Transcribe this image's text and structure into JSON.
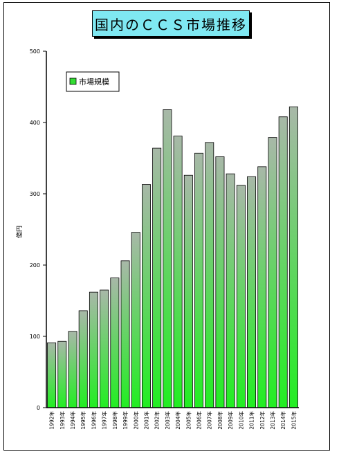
{
  "chart_data": {
    "type": "bar",
    "title": "国内のＣＣＳ市場推移",
    "ylabel": "億円",
    "xlabel": "",
    "ylim": [
      0,
      500
    ],
    "yticks": [
      0,
      100,
      200,
      300,
      400,
      500
    ],
    "legend_position": "top-left",
    "bar_color_top": "#a8b8a8",
    "bar_color_bottom": "#22ee22",
    "series": [
      {
        "name": "市場規模",
        "values": [
          91,
          93,
          107,
          136,
          162,
          165,
          182,
          206,
          246,
          313,
          364,
          418,
          381,
          326,
          357,
          372,
          352,
          328,
          312,
          324,
          338,
          379,
          408,
          422
        ]
      }
    ],
    "categories": [
      "1992年",
      "1993年",
      "1994年",
      "1995年",
      "1996年",
      "1997年",
      "1998年",
      "1999年",
      "2000年",
      "2001年",
      "2002年",
      "2003年",
      "2004年",
      "2005年",
      "2006年",
      "2007年",
      "2008年",
      "2009年",
      "2010年",
      "2011年",
      "2012年",
      "2013年",
      "2014年",
      "2015年"
    ]
  }
}
